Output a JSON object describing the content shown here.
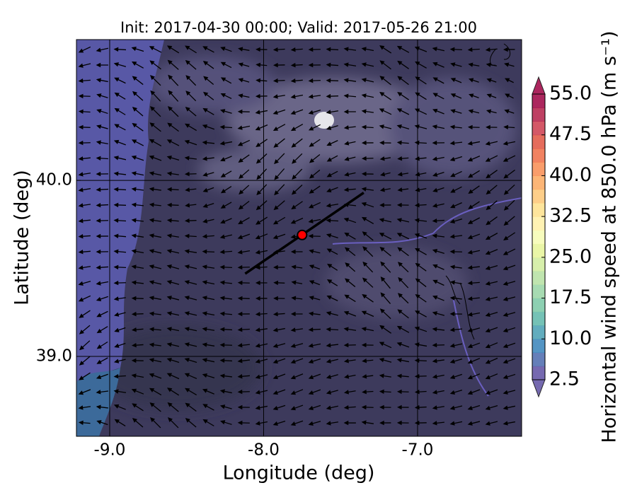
{
  "chart_data": {
    "type": "map",
    "title": "Init: 2017-04-30 00:00; Valid: 2017-05-26 21:00",
    "x_label": "Longitude (deg)",
    "y_label": "Latitude (deg)",
    "xlim": [
      -9.216,
      -6.324
    ],
    "ylim": [
      38.546,
      40.8
    ],
    "xticks": [
      {
        "value": -9,
        "label": "-9.0"
      },
      {
        "value": -8,
        "label": "-8.0"
      },
      {
        "value": -7,
        "label": "-7.0"
      }
    ],
    "yticks": [
      {
        "value": 39,
        "label": "39.0"
      },
      {
        "value": 40,
        "label": "40.0"
      }
    ],
    "grid": true,
    "transect": {
      "x": [
        -8.12,
        -7.35
      ],
      "y": [
        39.47,
        39.93
      ],
      "color": "#000000"
    },
    "marker": {
      "x": -7.75,
      "y": 39.69,
      "color": "#ff0000"
    },
    "colorbar": {
      "label": "Horizontal wind speed at 850.0 hPa (m s⁻¹)",
      "clim": [
        2.5,
        55
      ],
      "ticks": [
        {
          "value": 2.5,
          "label": "2.5"
        },
        {
          "value": 10,
          "label": "10.0"
        },
        {
          "value": 17.5,
          "label": "17.5"
        },
        {
          "value": 25,
          "label": "25.0"
        },
        {
          "value": 32.5,
          "label": "32.5"
        },
        {
          "value": 40,
          "label": "40.0"
        },
        {
          "value": 47.5,
          "label": "47.5"
        },
        {
          "value": 55,
          "label": "55.0"
        }
      ],
      "colors": [
        "#5e4fa2",
        "#4a68ad",
        "#3682ba",
        "#479fb3",
        "#5db7a9",
        "#79c8a4",
        "#98d5a4",
        "#b5e1a1",
        "#d0ec9c",
        "#e6f598",
        "#f6fbb2",
        "#fff0a6",
        "#fee08b",
        "#fdc574",
        "#fca85e",
        "#f88c51",
        "#ef6c45",
        "#e0523f",
        "#cc3b4c",
        "#b31e48",
        "#9e0142"
      ]
    }
  }
}
